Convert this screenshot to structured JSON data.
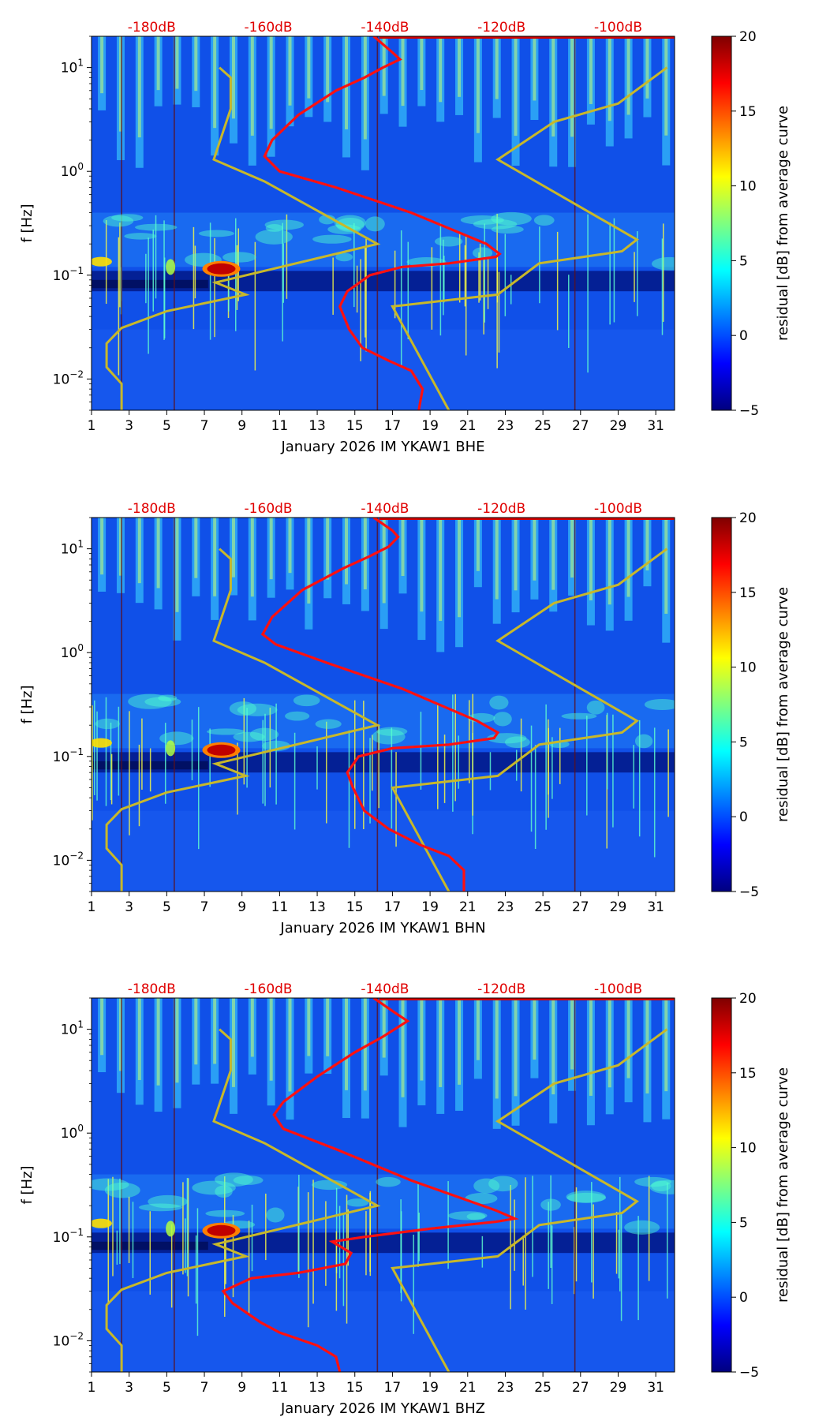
{
  "colorbar": {
    "label": "residual [dB] from average curve",
    "range": [
      -5,
      20
    ],
    "ticks": [
      -5,
      0,
      5,
      10,
      15,
      20
    ],
    "colormap": [
      "#00007f",
      "#0000ff",
      "#007fff",
      "#00ffff",
      "#7fff7f",
      "#ffff00",
      "#ff7f00",
      "#ff0000",
      "#7f0000"
    ]
  },
  "colors": {
    "background": "#1050e8",
    "dark_band": "#00107a",
    "red_curve": "#ff1010",
    "model_curve": "#c8b82a",
    "top_db_labels": "#e00000"
  },
  "chart_data": [
    {
      "type": "heatmap",
      "title": "",
      "xlabel": "January 2026 IM YKAW1  BHE",
      "ylabel": "f [Hz]",
      "xlim": [
        1,
        32
      ],
      "ylim": [
        0.005,
        20
      ],
      "yscale": "log",
      "x_ticks": [
        1,
        3,
        5,
        7,
        9,
        11,
        13,
        15,
        17,
        19,
        21,
        23,
        25,
        27,
        29,
        31
      ],
      "y_ticks": [
        {
          "value": 0.01,
          "base": "10",
          "exp": "−2"
        },
        {
          "value": 0.1,
          "base": "10",
          "exp": "−1"
        },
        {
          "value": 1,
          "base": "10",
          "exp": "0"
        },
        {
          "value": 10,
          "base": "10",
          "exp": "1"
        }
      ],
      "top_db_axis": {
        "labels": [
          "-180dB",
          "-160dB",
          "-140dB",
          "-120dB",
          "-100dB"
        ],
        "x_positions": [
          4.2,
          10.4,
          16.6,
          22.8,
          29.0
        ]
      },
      "model_curve_low_noise": {
        "x": [
          2.6,
          2.6,
          1.8,
          1.8,
          2.6,
          5.0,
          9.2,
          7.6,
          16.2,
          13.2,
          10.2,
          7.5,
          8.4,
          8.4,
          7.8
        ],
        "f": [
          0.005,
          0.009,
          0.013,
          0.022,
          0.031,
          0.045,
          0.065,
          0.085,
          0.2,
          0.4,
          0.8,
          1.3,
          4.0,
          8.0,
          10.0
        ]
      },
      "model_curve_high_noise": {
        "x": [
          20.0,
          17.0,
          22.6,
          24.8,
          29.2,
          30.0,
          22.6,
          25.6,
          29.0,
          31.6
        ],
        "f": [
          0.005,
          0.05,
          0.065,
          0.13,
          0.17,
          0.22,
          1.3,
          3.0,
          4.5,
          10.0
        ]
      },
      "median_psd_curve": {
        "x": [
          18.4,
          18.6,
          18.0,
          16.8,
          15.4,
          14.7,
          14.2,
          14.6,
          15.8,
          17.5,
          20.0,
          22.5,
          22.7,
          22.0,
          18.0,
          14.0,
          11.0,
          10.2,
          10.6,
          12.0,
          14.0,
          15.5,
          16.5,
          17.4,
          17.0,
          16.0
        ],
        "f": [
          0.005,
          0.008,
          0.012,
          0.015,
          0.02,
          0.03,
          0.05,
          0.07,
          0.1,
          0.12,
          0.13,
          0.15,
          0.16,
          0.2,
          0.4,
          0.7,
          1.0,
          1.4,
          2.0,
          3.5,
          6.0,
          8.0,
          10.0,
          12.0,
          14.0,
          20.0
        ]
      }
    },
    {
      "type": "heatmap",
      "title": "",
      "xlabel": "January 2026 IM YKAW1  BHN",
      "ylabel": "f [Hz]",
      "xlim": [
        1,
        32
      ],
      "ylim": [
        0.005,
        20
      ],
      "yscale": "log",
      "x_ticks": [
        1,
        3,
        5,
        7,
        9,
        11,
        13,
        15,
        17,
        19,
        21,
        23,
        25,
        27,
        29,
        31
      ],
      "y_ticks": [
        {
          "value": 0.01,
          "base": "10",
          "exp": "−2"
        },
        {
          "value": 0.1,
          "base": "10",
          "exp": "−1"
        },
        {
          "value": 1,
          "base": "10",
          "exp": "0"
        },
        {
          "value": 10,
          "base": "10",
          "exp": "1"
        }
      ],
      "top_db_axis": {
        "labels": [
          "-180dB",
          "-160dB",
          "-140dB",
          "-120dB",
          "-100dB"
        ],
        "x_positions": [
          4.2,
          10.4,
          16.6,
          22.8,
          29.0
        ]
      },
      "model_curve_low_noise": {
        "x": [
          2.6,
          2.6,
          1.8,
          1.8,
          2.6,
          5.0,
          9.2,
          7.6,
          16.2,
          13.2,
          10.2,
          7.5,
          8.4,
          8.4,
          7.8
        ],
        "f": [
          0.005,
          0.009,
          0.013,
          0.022,
          0.031,
          0.045,
          0.065,
          0.085,
          0.2,
          0.4,
          0.8,
          1.3,
          4.0,
          8.0,
          10.0
        ]
      },
      "model_curve_high_noise": {
        "x": [
          20.0,
          17.0,
          22.6,
          24.8,
          29.2,
          30.0,
          22.6,
          25.6,
          29.0,
          31.6
        ],
        "f": [
          0.005,
          0.05,
          0.065,
          0.13,
          0.17,
          0.22,
          1.3,
          3.0,
          4.5,
          10.0
        ]
      },
      "median_psd_curve": {
        "x": [
          20.8,
          20.8,
          20.0,
          18.5,
          16.8,
          15.5,
          14.9,
          14.6,
          15.2,
          17.0,
          20.0,
          22.4,
          22.6,
          21.5,
          17.5,
          13.5,
          10.8,
          10.1,
          10.6,
          12.2,
          14.4,
          15.8,
          16.8,
          17.3,
          17.0,
          16.0
        ],
        "f": [
          0.005,
          0.008,
          0.011,
          0.014,
          0.02,
          0.03,
          0.05,
          0.07,
          0.1,
          0.12,
          0.13,
          0.15,
          0.17,
          0.22,
          0.45,
          0.8,
          1.2,
          1.5,
          2.2,
          4.0,
          6.5,
          8.5,
          10.5,
          13.0,
          15.0,
          20.0
        ]
      }
    },
    {
      "type": "heatmap",
      "title": "",
      "xlabel": "January 2026 IM YKAW1  BHZ",
      "ylabel": "f [Hz]",
      "xlim": [
        1,
        32
      ],
      "ylim": [
        0.005,
        20
      ],
      "yscale": "log",
      "x_ticks": [
        1,
        3,
        5,
        7,
        9,
        11,
        13,
        15,
        17,
        19,
        21,
        23,
        25,
        27,
        29,
        31
      ],
      "y_ticks": [
        {
          "value": 0.01,
          "base": "10",
          "exp": "−2"
        },
        {
          "value": 0.1,
          "base": "10",
          "exp": "−1"
        },
        {
          "value": 1,
          "base": "10",
          "exp": "0"
        },
        {
          "value": 10,
          "base": "10",
          "exp": "1"
        }
      ],
      "top_db_axis": {
        "labels": [
          "-180dB",
          "-160dB",
          "-140dB",
          "-120dB",
          "-100dB"
        ],
        "x_positions": [
          4.2,
          10.4,
          16.6,
          22.8,
          29.0
        ]
      },
      "model_curve_low_noise": {
        "x": [
          2.6,
          2.6,
          1.8,
          1.8,
          2.6,
          5.0,
          9.2,
          7.6,
          16.2,
          13.2,
          10.2,
          7.5,
          8.4,
          8.4,
          7.8
        ],
        "f": [
          0.005,
          0.009,
          0.013,
          0.022,
          0.031,
          0.045,
          0.065,
          0.085,
          0.2,
          0.4,
          0.8,
          1.3,
          4.0,
          8.0,
          10.0
        ]
      },
      "model_curve_high_noise": {
        "x": [
          20.0,
          17.0,
          22.6,
          24.8,
          29.2,
          30.0,
          22.6,
          25.6,
          29.0,
          31.6
        ],
        "f": [
          0.005,
          0.05,
          0.065,
          0.13,
          0.17,
          0.22,
          1.3,
          3.0,
          4.5,
          10.0
        ]
      },
      "median_psd_curve": {
        "x": [
          14.2,
          14.0,
          13.0,
          11.0,
          10.0,
          8.5,
          8.0,
          9.5,
          12.0,
          14.5,
          14.8,
          13.8,
          15.5,
          19.0,
          22.5,
          23.5,
          22.5,
          18.0,
          14.0,
          11.2,
          10.7,
          11.2,
          13.0,
          15.0,
          16.5,
          17.8,
          17.0,
          16.0
        ],
        "f": [
          0.005,
          0.007,
          0.009,
          0.012,
          0.015,
          0.023,
          0.03,
          0.04,
          0.045,
          0.055,
          0.07,
          0.09,
          0.1,
          0.12,
          0.14,
          0.15,
          0.18,
          0.35,
          0.7,
          1.1,
          1.5,
          2.0,
          3.5,
          6.0,
          8.5,
          12.0,
          15.0,
          20.0
        ]
      }
    }
  ]
}
